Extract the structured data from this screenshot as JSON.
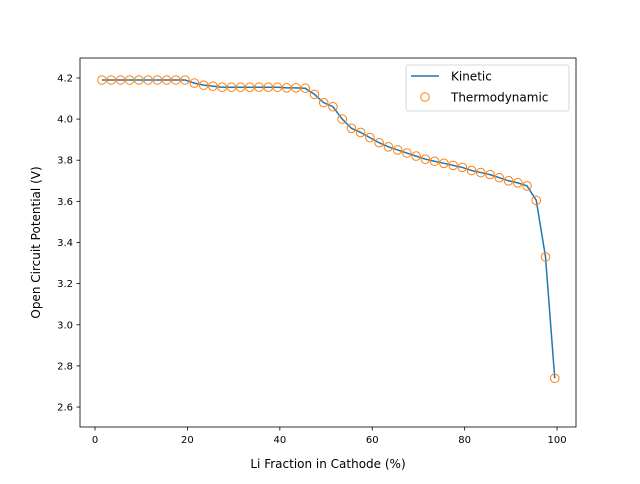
{
  "chart_data": {
    "type": "line",
    "xlabel": "Li Fraction in Cathode (%)",
    "ylabel": "Open Circuit Potential (V)",
    "xlim": [
      -3.25,
      104.1
    ],
    "ylim": [
      2.503,
      4.297
    ],
    "xticks": [
      0,
      20,
      40,
      60,
      80,
      100
    ],
    "yticks": [
      2.6,
      2.8,
      3.0,
      3.2,
      3.4,
      3.6,
      3.8,
      4.0,
      4.2
    ],
    "ytick_labels": [
      "2.6",
      "2.8",
      "3.0",
      "3.2",
      "3.4",
      "3.6",
      "3.8",
      "4.0",
      "4.2"
    ],
    "grid": false,
    "legend_position": "top-right",
    "x": [
      1.5,
      3.5,
      5.5,
      7.5,
      9.5,
      11.5,
      13.5,
      15.5,
      17.5,
      19.5,
      21.5,
      23.5,
      25.5,
      27.5,
      29.5,
      31.5,
      33.5,
      35.5,
      37.5,
      39.5,
      41.5,
      43.5,
      45.5,
      47.5,
      49.5,
      51.5,
      53.5,
      55.5,
      57.5,
      59.5,
      61.5,
      63.5,
      65.5,
      67.5,
      69.5,
      71.5,
      73.5,
      75.5,
      77.5,
      79.5,
      81.5,
      83.5,
      85.5,
      87.5,
      89.5,
      91.5,
      93.5,
      95.5,
      97.5,
      99.5
    ],
    "series": [
      {
        "name": "Kinetic",
        "style": "line",
        "color": "#1f77b4",
        "values": [
          4.19,
          4.19,
          4.19,
          4.19,
          4.19,
          4.19,
          4.19,
          4.19,
          4.19,
          4.19,
          4.175,
          4.165,
          4.16,
          4.155,
          4.155,
          4.155,
          4.155,
          4.155,
          4.155,
          4.155,
          4.152,
          4.152,
          4.15,
          4.12,
          4.08,
          4.06,
          4.0,
          3.955,
          3.935,
          3.91,
          3.885,
          3.865,
          3.85,
          3.835,
          3.82,
          3.805,
          3.795,
          3.785,
          3.775,
          3.765,
          3.75,
          3.74,
          3.73,
          3.715,
          3.7,
          3.69,
          3.675,
          3.605,
          3.33,
          2.74
        ]
      },
      {
        "name": "Thermodynamic",
        "style": "markers",
        "color": "#ff7f0e",
        "values": [
          4.19,
          4.19,
          4.19,
          4.19,
          4.19,
          4.19,
          4.19,
          4.19,
          4.19,
          4.19,
          4.175,
          4.165,
          4.16,
          4.155,
          4.155,
          4.155,
          4.155,
          4.155,
          4.155,
          4.155,
          4.152,
          4.152,
          4.15,
          4.12,
          4.08,
          4.06,
          4.0,
          3.955,
          3.935,
          3.91,
          3.885,
          3.865,
          3.85,
          3.835,
          3.82,
          3.805,
          3.795,
          3.785,
          3.775,
          3.765,
          3.75,
          3.74,
          3.73,
          3.715,
          3.7,
          3.69,
          3.675,
          3.605,
          3.33,
          2.74
        ]
      }
    ]
  }
}
